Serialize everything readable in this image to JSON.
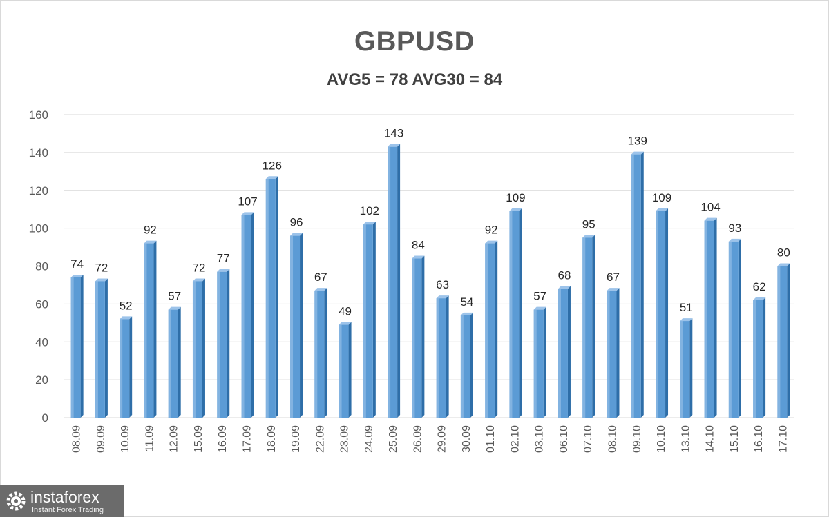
{
  "chart_data": {
    "type": "bar",
    "title": "GBPUSD",
    "subtitle": "AVG5 = 78 AVG30 = 84",
    "categories": [
      "08.09",
      "09.09",
      "10.09",
      "11.09",
      "12.09",
      "15.09",
      "16.09",
      "17.09",
      "18.09",
      "19.09",
      "22.09",
      "23.09",
      "24.09",
      "25.09",
      "26.09",
      "29.09",
      "30.09",
      "01.10",
      "02.10",
      "03.10",
      "06.10",
      "07.10",
      "08.10",
      "09.10",
      "10.10",
      "13.10",
      "14.10",
      "15.10",
      "16.10",
      "17.10"
    ],
    "values": [
      74,
      72,
      52,
      92,
      57,
      72,
      77,
      107,
      126,
      96,
      67,
      49,
      102,
      143,
      84,
      63,
      54,
      92,
      109,
      57,
      68,
      95,
      67,
      139,
      109,
      51,
      104,
      93,
      62,
      80
    ],
    "ylim": [
      0,
      160
    ],
    "yticks": [
      0,
      20,
      40,
      60,
      80,
      100,
      120,
      140,
      160
    ],
    "grid": true,
    "legend": "none",
    "colors": {
      "bar": "#5b9bd5",
      "bar_light": "#9cc3ea",
      "bar_dark": "#2e6ea8",
      "grid": "#d9d9d9"
    }
  },
  "logo": {
    "name": "instaforex",
    "tagline": "Instant Forex Trading"
  }
}
